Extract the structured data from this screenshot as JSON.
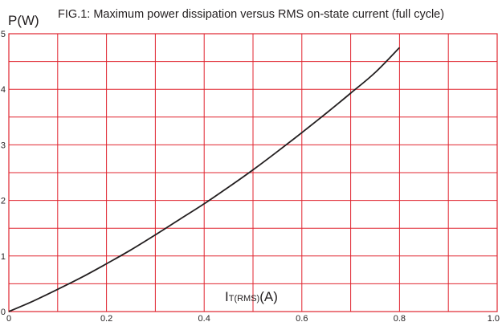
{
  "chart_data": {
    "type": "line",
    "title": "FIG.1:  Maximum power dissipation versus RMS on-state current (full cycle)",
    "ylabel": "P(W)",
    "xlabel": {
      "main": "I",
      "sub": "T(RMS)",
      "unit": "(A)"
    },
    "xlim": [
      0,
      1.0
    ],
    "ylim": [
      0,
      5
    ],
    "x_ticks": [
      "0",
      "0.2",
      "0.4",
      "0.6",
      "0.8",
      "1.0"
    ],
    "y_ticks": [
      "0",
      "1",
      "2",
      "3",
      "4",
      "5"
    ],
    "grid": true,
    "grid_color": "#e0242f",
    "line_color": "#231f20",
    "series": [
      {
        "x": [
          0,
          0.05,
          0.1,
          0.15,
          0.2,
          0.25,
          0.3,
          0.35,
          0.4,
          0.45,
          0.5,
          0.55,
          0.6,
          0.65,
          0.7,
          0.75,
          0.8
        ],
        "y": [
          0.0,
          0.19,
          0.4,
          0.62,
          0.86,
          1.11,
          1.38,
          1.66,
          1.94,
          2.24,
          2.55,
          2.88,
          3.22,
          3.57,
          3.93,
          4.3,
          4.75
        ]
      }
    ]
  }
}
